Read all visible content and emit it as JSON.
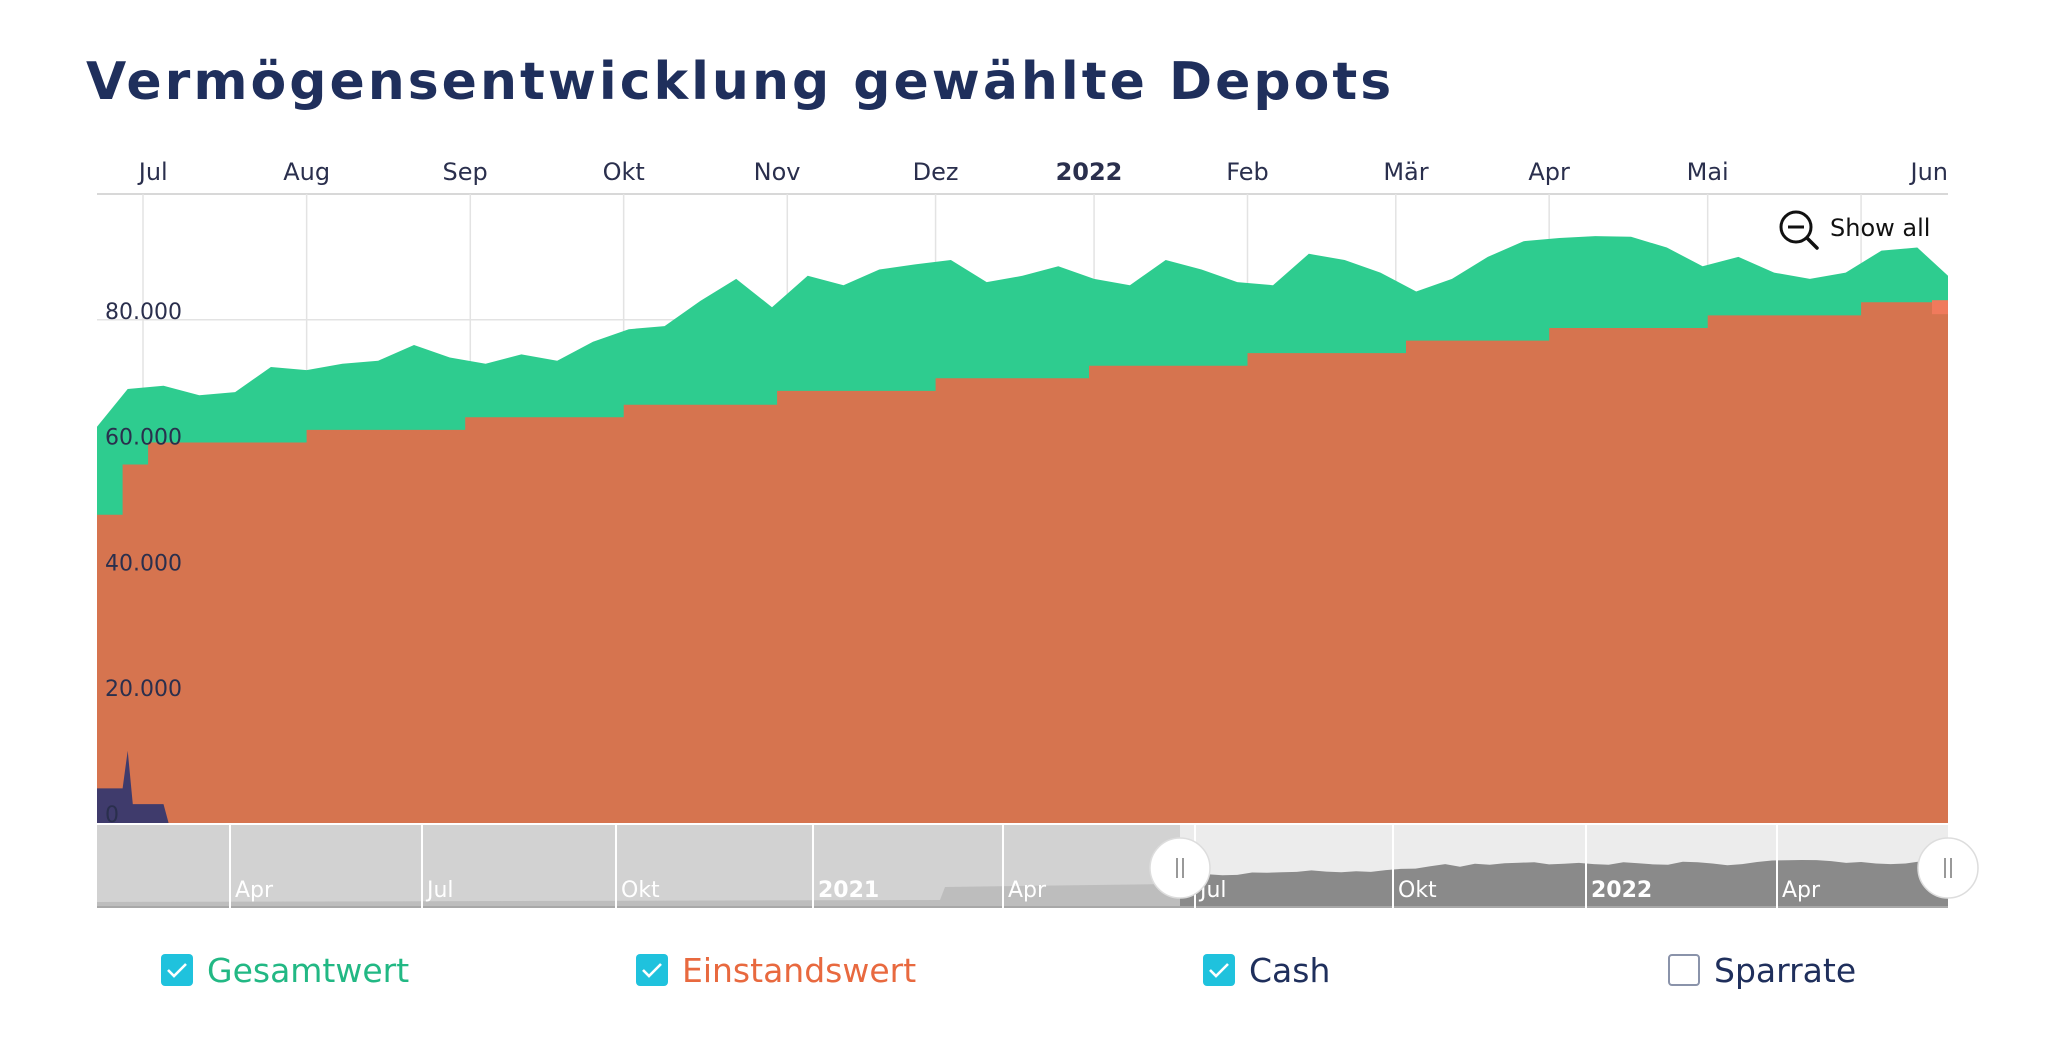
{
  "title": "Vermögensentwicklung gewählte Depots",
  "show_all_label": "Show all",
  "colors": {
    "gesamtwert": "#2ecc8f",
    "einstandswert": "#d6744f",
    "cash": "#3f3b6c",
    "title": "#1f2f5c",
    "checkbox": "#1fc2dd",
    "navigator_selected": "#8a8a8a",
    "navigator_unselected": "#d2d2d2"
  },
  "legend": [
    {
      "label": "Gesamtwert",
      "checked": true,
      "color": "#22b884"
    },
    {
      "label": "Einstandswert",
      "checked": true,
      "color": "#e8693f"
    },
    {
      "label": "Cash",
      "checked": true,
      "color": "#1f2f5c"
    },
    {
      "label": "Sparrate",
      "checked": false,
      "color": "#1f2f5c"
    }
  ],
  "chart_data": {
    "type": "area",
    "y_ticks": [
      "0",
      "20.000",
      "40.000",
      "60.000",
      "80.000"
    ],
    "ylim": [
      0,
      100000
    ],
    "x_ticks": [
      "Jul",
      "Aug",
      "Sep",
      "Okt",
      "Nov",
      "Dez",
      "2022",
      "Feb",
      "Mär",
      "Apr",
      "Mai",
      "Jun"
    ],
    "xlim": [
      "2021-06-04",
      "2022-06-01"
    ],
    "grid": true,
    "series": [
      {
        "name": "Gesamtwert",
        "x": [
          "2021-06-04",
          "2021-06-10",
          "2021-06-17",
          "2021-06-24",
          "2021-07-01",
          "2021-07-08",
          "2021-07-15",
          "2021-07-22",
          "2021-07-29",
          "2021-08-05",
          "2021-08-12",
          "2021-08-19",
          "2021-08-26",
          "2021-09-02",
          "2021-09-09",
          "2021-09-16",
          "2021-09-23",
          "2021-09-30",
          "2021-10-07",
          "2021-10-14",
          "2021-10-21",
          "2021-10-28",
          "2021-11-04",
          "2021-11-11",
          "2021-11-18",
          "2021-11-25",
          "2021-12-02",
          "2021-12-09",
          "2021-12-16",
          "2021-12-23",
          "2021-12-30",
          "2022-01-06",
          "2022-01-13",
          "2022-01-20",
          "2022-01-27",
          "2022-02-03",
          "2022-02-10",
          "2022-02-17",
          "2022-02-24",
          "2022-03-03",
          "2022-03-10",
          "2022-03-17",
          "2022-03-24",
          "2022-03-31",
          "2022-04-07",
          "2022-04-14",
          "2022-04-21",
          "2022-04-28",
          "2022-05-05",
          "2022-05-12",
          "2022-05-19",
          "2022-05-26",
          "2022-06-01"
        ],
        "values": [
          63000,
          69000,
          69500,
          68000,
          68500,
          72500,
          72000,
          73000,
          73500,
          76000,
          74000,
          73000,
          74500,
          73500,
          76500,
          78500,
          79000,
          83000,
          86500,
          82000,
          87000,
          85500,
          88000,
          88800,
          89500,
          86000,
          87000,
          88500,
          86500,
          85500,
          89500,
          88000,
          86000,
          85500,
          90500,
          89500,
          87500,
          84500,
          86500,
          90000,
          92500,
          93000,
          93300,
          93200,
          91500,
          88500,
          90000,
          87500,
          86500,
          87500,
          91000,
          91500,
          87000
        ]
      },
      {
        "name": "Einstandswert",
        "x": [
          "2021-06-04",
          "2021-06-09",
          "2021-06-14",
          "2021-07-15",
          "2021-08-15",
          "2021-09-15",
          "2021-10-15",
          "2021-11-15",
          "2021-12-15",
          "2022-01-15",
          "2022-02-15",
          "2022-03-15",
          "2022-04-15",
          "2022-05-15",
          "2022-06-01"
        ],
        "values": [
          49000,
          57000,
          60500,
          62500,
          64500,
          66500,
          68700,
          70700,
          72700,
          74700,
          76700,
          78700,
          80700,
          82800,
          82800
        ]
      },
      {
        "name": "Cash",
        "x": [
          "2021-06-04",
          "2021-06-09",
          "2021-06-10",
          "2021-06-11",
          "2021-06-12",
          "2021-06-17",
          "2021-06-18"
        ],
        "values": [
          5500,
          5500,
          11500,
          3000,
          3000,
          3000,
          0
        ]
      }
    ]
  },
  "navigator": {
    "labels": [
      "Apr",
      "Jul",
      "Okt",
      "2021",
      "Apr",
      "Jul",
      "Okt",
      "2022",
      "Apr"
    ],
    "bold_labels": [
      "2021",
      "2022"
    ]
  }
}
